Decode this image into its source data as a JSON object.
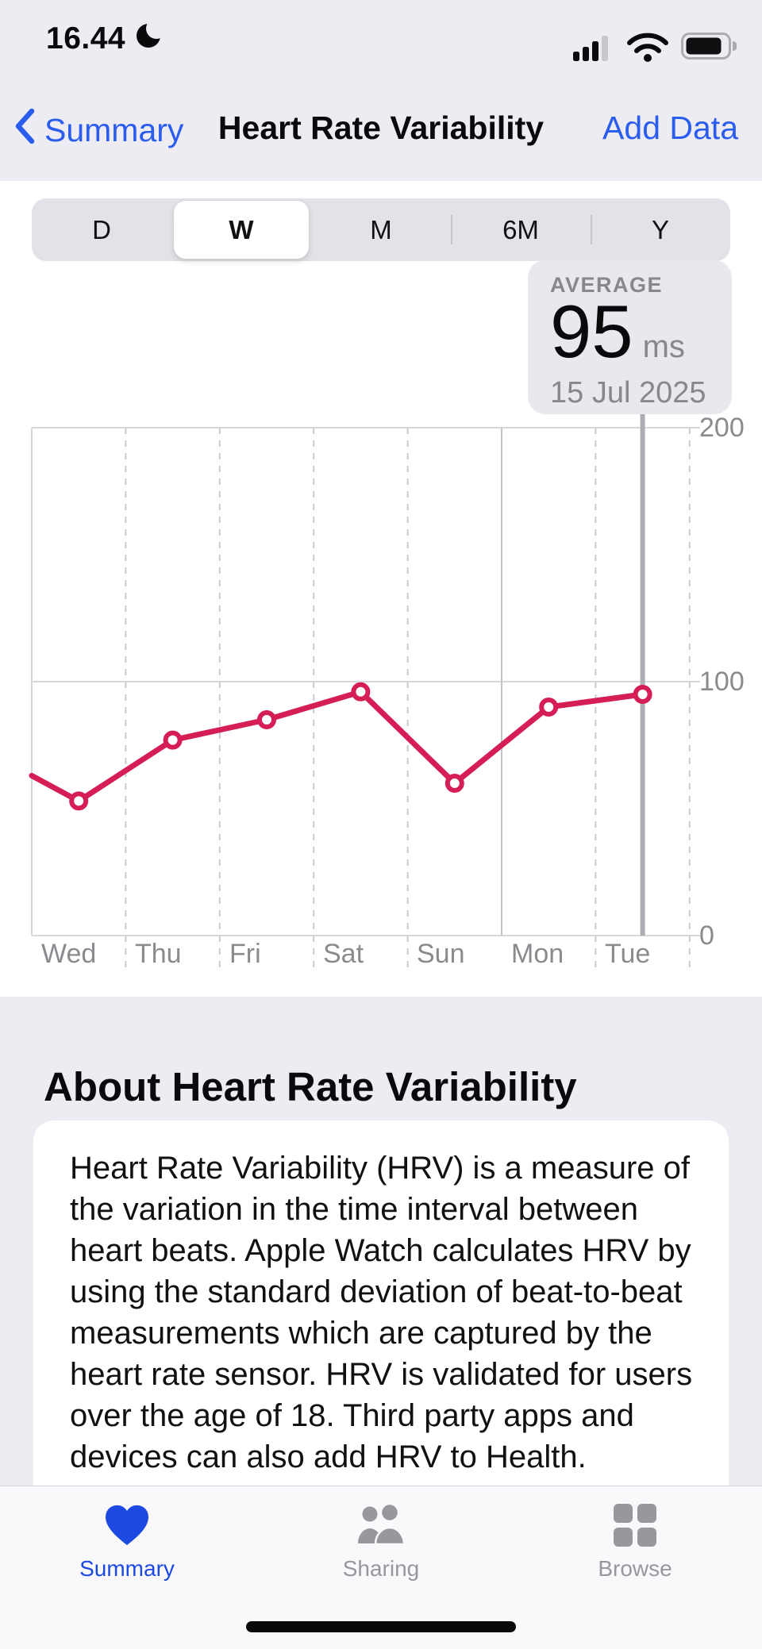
{
  "status_bar": {
    "time": "16.44",
    "dnd_icon": "moon-icon",
    "signal_icon": "cellular-signal-icon",
    "wifi_icon": "wifi-icon",
    "battery_icon": "battery-icon"
  },
  "nav": {
    "back_label": "Summary",
    "title": "Heart Rate Variability",
    "action_label": "Add Data"
  },
  "range_selector": {
    "segments": [
      "D",
      "W",
      "M",
      "6M",
      "Y"
    ],
    "selected": "W"
  },
  "callout": {
    "label": "AVERAGE",
    "value": "95",
    "unit": "ms",
    "date": "15 Jul 2025"
  },
  "chart_data": {
    "type": "line",
    "title": "Heart Rate Variability, week view",
    "unit": "ms",
    "categories": [
      "Wed",
      "Thu",
      "Fri",
      "Sat",
      "Sun",
      "Mon",
      "Tue"
    ],
    "values": [
      53,
      77,
      85,
      96,
      60,
      90,
      95
    ],
    "left_edge_value": 63,
    "selected_point": {
      "category": "Tue",
      "value": 95,
      "date": "15 Jul 2025"
    },
    "ylim": [
      0,
      200
    ],
    "yticks": [
      "0",
      "100",
      "200"
    ],
    "grid": "on",
    "line_color": "#D61E56",
    "marker": "open-circle"
  },
  "about": {
    "title": "About Heart Rate Variability",
    "body": "Heart Rate Variability (HRV) is a measure of the variation in the time interval between heart beats. Apple Watch calculates HRV by using the standard deviation of beat-to-beat measurements which are captured by the heart rate sensor. HRV is validated for users over the age of 18. Third party apps and devices can also add HRV to Health."
  },
  "tab_bar": {
    "items": [
      {
        "label": "Summary",
        "icon": "heart-icon",
        "active": true
      },
      {
        "label": "Sharing",
        "icon": "people-icon",
        "active": false
      },
      {
        "label": "Browse",
        "icon": "grid-icon",
        "active": false
      }
    ]
  },
  "colors": {
    "nav_accent": "#2A5CEE",
    "tab_accent": "#1D49E2",
    "chart_line": "#D61E56",
    "header_bg": "#EDECF2"
  }
}
